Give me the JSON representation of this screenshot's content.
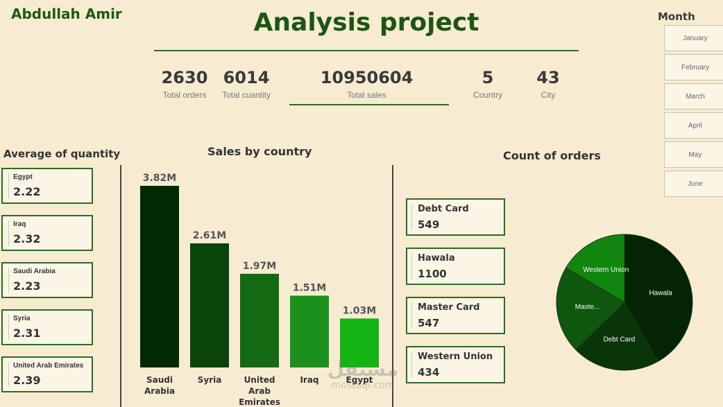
{
  "author": "Abdullah Amir",
  "title": "Analysis project",
  "kpis": [
    {
      "value": "2630",
      "label": "Total orders"
    },
    {
      "value": "6014",
      "label": "Total cuantity"
    },
    {
      "value": "10950604",
      "label": "Total sales"
    },
    {
      "value": "5",
      "label": "Country"
    },
    {
      "value": "43",
      "label": "City"
    }
  ],
  "month_filter": {
    "title": "Month",
    "items": [
      "January",
      "February",
      "March",
      "April",
      "May",
      "June"
    ]
  },
  "avg_quantity": {
    "title": "Average of quantity",
    "cards": [
      {
        "country": "Egypt",
        "value": "2.22"
      },
      {
        "country": "Iraq",
        "value": "2.32"
      },
      {
        "country": "Saudi Arabia",
        "value": "2.23"
      },
      {
        "country": "Syria",
        "value": "2.31"
      },
      {
        "country": "United Arab Emirates",
        "value": "2.39"
      }
    ]
  },
  "orders_section": {
    "title": "Count of orders",
    "cards": [
      {
        "method": "Debt Card",
        "count": "549"
      },
      {
        "method": "Hawala",
        "count": "1100"
      },
      {
        "method": "Master Card",
        "count": "547"
      },
      {
        "method": "Western Union",
        "count": "434"
      }
    ]
  },
  "watermark": {
    "line1": "مستقل",
    "line2": "mostaql.com"
  },
  "chart_data": [
    {
      "type": "bar",
      "title": "Sales by country",
      "categories": [
        [
          "Saudi",
          "Arabia"
        ],
        [
          "Syria"
        ],
        [
          "United",
          "Arab",
          "Emirates"
        ],
        [
          "Iraq"
        ],
        [
          "Egypt"
        ]
      ],
      "values": [
        3.82,
        2.61,
        1.97,
        1.51,
        1.03
      ],
      "data_labels": [
        "3.82M",
        "2.61M",
        "1.97M",
        "1.51M",
        "1.03M"
      ],
      "colors": [
        "#022a02",
        "#0a440a",
        "#136a13",
        "#1c901c",
        "#14b414"
      ],
      "ylim": [
        0,
        3.82
      ]
    },
    {
      "type": "pie",
      "labels": [
        "Hawala",
        "Debt Card",
        "Maste...",
        "Western Union"
      ],
      "values": [
        1100,
        549,
        547,
        434
      ],
      "colors": [
        "#042404",
        "#093509",
        "#0f560f",
        "#11860f"
      ]
    }
  ]
}
